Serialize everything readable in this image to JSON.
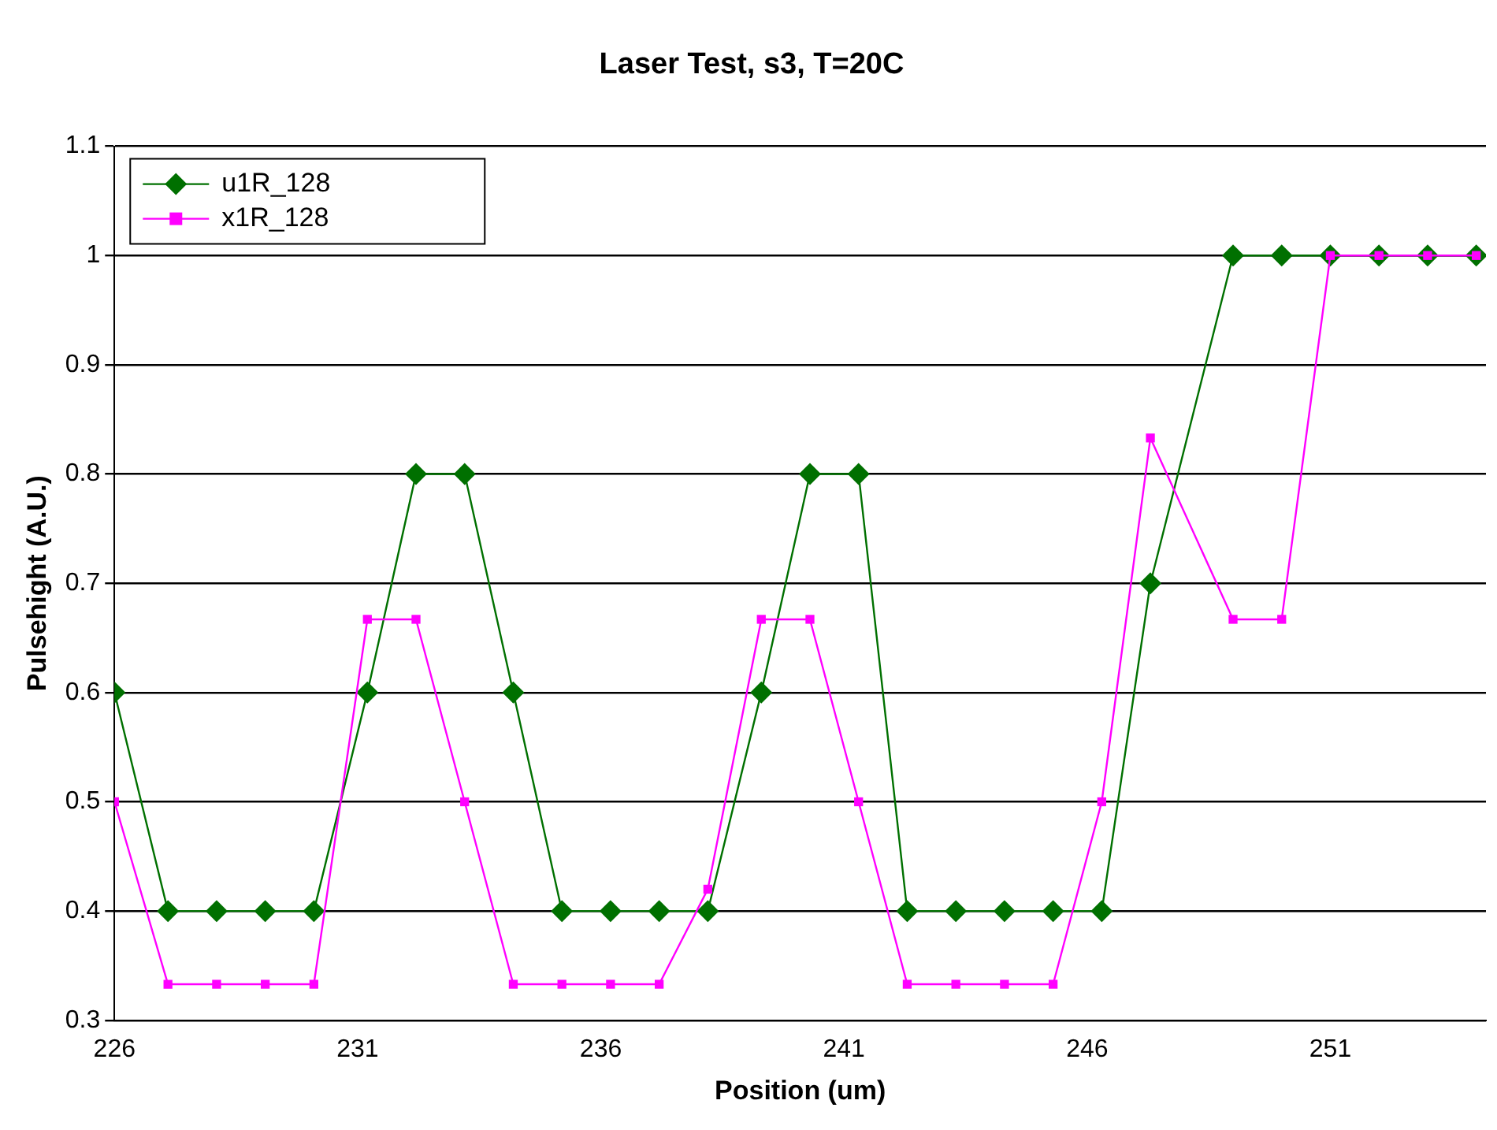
{
  "chart_data": {
    "type": "line",
    "title": "Laser Test, s3, T=20C",
    "xlabel": "Position (um)",
    "ylabel": "Pulsehight (A.U.)",
    "x": [
      226,
      227.1,
      228.1,
      229.1,
      230.1,
      231.2,
      232.2,
      233.2,
      234.2,
      235.2,
      236.2,
      237.2,
      238.2,
      239.3,
      240.3,
      241.3,
      242.3,
      243.3,
      244.3,
      245.3,
      246.3,
      247.3,
      249,
      250,
      251,
      252,
      253,
      254
    ],
    "series": [
      {
        "name": "u1R_128",
        "color": "#007000",
        "marker": "diamond",
        "values": [
          0.6,
          0.4,
          0.4,
          0.4,
          0.4,
          0.6,
          0.8,
          0.8,
          0.6,
          0.4,
          0.4,
          0.4,
          0.4,
          0.6,
          0.8,
          0.8,
          0.4,
          0.4,
          0.4,
          0.4,
          0.4,
          0.7,
          1,
          1,
          1,
          1,
          1,
          1
        ]
      },
      {
        "name": "x1R_128",
        "color": "#ff00ff",
        "marker": "square",
        "values": [
          0.5,
          0.333,
          0.333,
          0.333,
          0.333,
          0.667,
          0.667,
          0.5,
          0.333,
          0.333,
          0.333,
          0.333,
          0.42,
          0.667,
          0.667,
          0.5,
          0.333,
          0.333,
          0.333,
          0.333,
          0.5,
          0.833,
          0.667,
          0.667,
          1,
          1,
          1,
          1
        ]
      }
    ],
    "xlim": [
      226,
      254.2
    ],
    "xticks": [
      226,
      231,
      236,
      241,
      246,
      251
    ],
    "ylim": [
      0.3,
      1.1
    ],
    "yticks": [
      0.3,
      0.4,
      0.5,
      0.6,
      0.7,
      0.8,
      0.9,
      1,
      1.1
    ],
    "grid": "y",
    "legend": "top left",
    "line_style": "solid"
  }
}
